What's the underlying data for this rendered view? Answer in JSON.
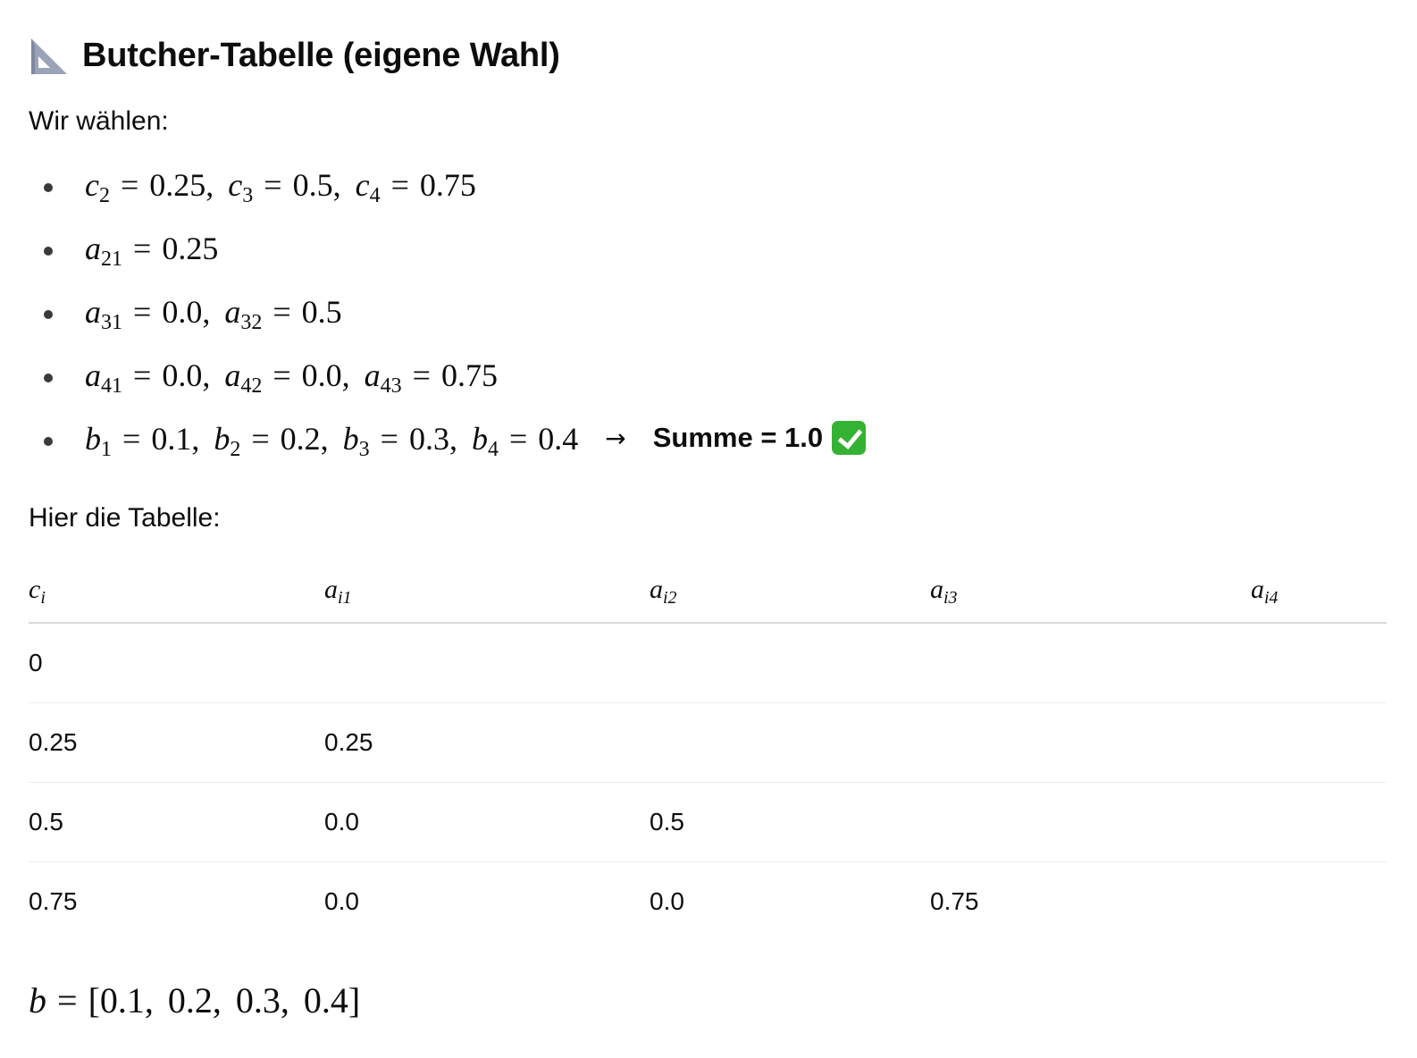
{
  "heading": {
    "icon": "triangular-ruler-icon",
    "title": "Butcher-Tabelle (eigene Wahl)"
  },
  "intro_text": "Wir wählen:",
  "bullets": {
    "c": {
      "c2": "0.25",
      "c3": "0.5",
      "c4": "0.75"
    },
    "a2": {
      "a21": "0.25"
    },
    "a3": {
      "a31": "0.0",
      "a32": "0.5"
    },
    "a4": {
      "a41": "0.0",
      "a42": "0.0",
      "a43": "0.75"
    },
    "b": {
      "b1": "0.1",
      "b2": "0.2",
      "b3": "0.3",
      "b4": "0.4"
    },
    "sum_label": "Summe = 1.0",
    "sum_icon": "check-mark-icon",
    "arrow": "→"
  },
  "table_intro": "Hier die Tabelle:",
  "table": {
    "headers": [
      {
        "base": "c",
        "sub": "i"
      },
      {
        "base": "a",
        "sub": "i1"
      },
      {
        "base": "a",
        "sub": "i2"
      },
      {
        "base": "a",
        "sub": "i3"
      },
      {
        "base": "a",
        "sub": "i4"
      }
    ],
    "rows": [
      [
        "0",
        "",
        "",
        "",
        ""
      ],
      [
        "0.25",
        "0.25",
        "",
        "",
        ""
      ],
      [
        "0.5",
        "0.0",
        "0.5",
        "",
        ""
      ],
      [
        "0.75",
        "0.0",
        "0.0",
        "0.75",
        ""
      ]
    ]
  },
  "b_vector": {
    "symbol": "b",
    "values": [
      "0.1",
      "0.2",
      "0.3",
      "0.4"
    ]
  },
  "colors": {
    "text": "#0d0d0d",
    "check_green": "#34b233",
    "divider": "#d9d9d9"
  }
}
